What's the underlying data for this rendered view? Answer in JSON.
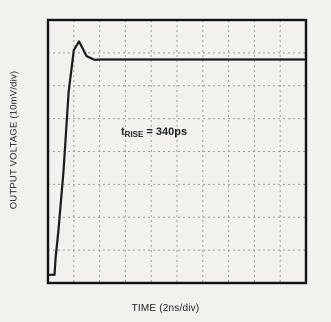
{
  "chart_data": {
    "type": "line",
    "xlabel": "TIME (2ns/div)",
    "ylabel": "OUTPUT VOLTAGE (10mV/div)",
    "annotation": {
      "prefix": "t",
      "subscript": "RISE",
      "value": "= 340ps"
    },
    "x_divisions": 10,
    "y_divisions": 8,
    "grid": true,
    "x": [
      0,
      0.3,
      0.5,
      0.6,
      0.8,
      1.2,
      1.6,
      2.0,
      2.4,
      3.0,
      3.6,
      4.0,
      6.0,
      10.0,
      14.0,
      18.0,
      20.0
    ],
    "y": [
      2.5,
      2.5,
      2.5,
      8.0,
      15.5,
      34.0,
      58.0,
      70.8,
      73.5,
      69.0,
      67.9,
      68.0,
      68.0,
      68.0,
      68.0,
      68.0,
      68.0
    ],
    "xlim": [
      0,
      20
    ],
    "ylim": [
      0,
      80
    ],
    "colors": {
      "trace": "#1a1a1a",
      "grid": "#9a9a9a",
      "frame": "#111111"
    }
  }
}
